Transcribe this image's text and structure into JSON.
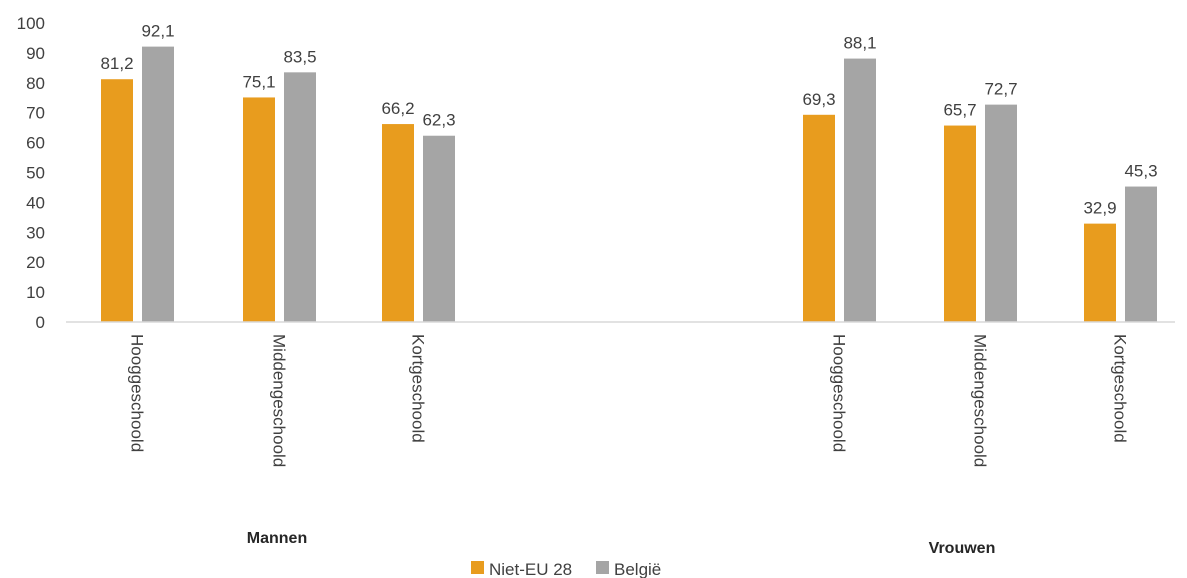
{
  "colors": {
    "niet_eu": "#E89C1E",
    "belgie": "#A5A5A5",
    "axis": "#D9D9D9",
    "text": "#404040"
  },
  "chart_data": {
    "type": "bar",
    "title": "",
    "xlabel": "",
    "ylabel": "",
    "ylim": [
      0,
      100
    ],
    "yticks": [
      "0",
      "10",
      "20",
      "30",
      "40",
      "50",
      "60",
      "70",
      "80",
      "90",
      "100"
    ],
    "groups": [
      {
        "name": "Mannen",
        "categories": [
          "Hooggeschoold",
          "Middengeschoold",
          "Kortgeschoold"
        ]
      },
      {
        "name": "Vrouwen",
        "categories": [
          "Hooggeschoold",
          "Middengeschoold",
          "Kortgeschoold"
        ]
      }
    ],
    "series": [
      {
        "name": "Niet-EU 28",
        "values": [
          81.2,
          75.1,
          66.2,
          69.3,
          65.7,
          32.9
        ],
        "labels": [
          "81,2",
          "75,1",
          "66,2",
          "69,3",
          "65,7",
          "32,9"
        ]
      },
      {
        "name": "België",
        "values": [
          92.1,
          83.5,
          62.3,
          88.1,
          72.7,
          45.3
        ],
        "labels": [
          "92,1",
          "83,5",
          "62,3",
          "88,1",
          "72,7",
          "45,3"
        ]
      }
    ],
    "legend_position": "bottom",
    "grid": false
  }
}
